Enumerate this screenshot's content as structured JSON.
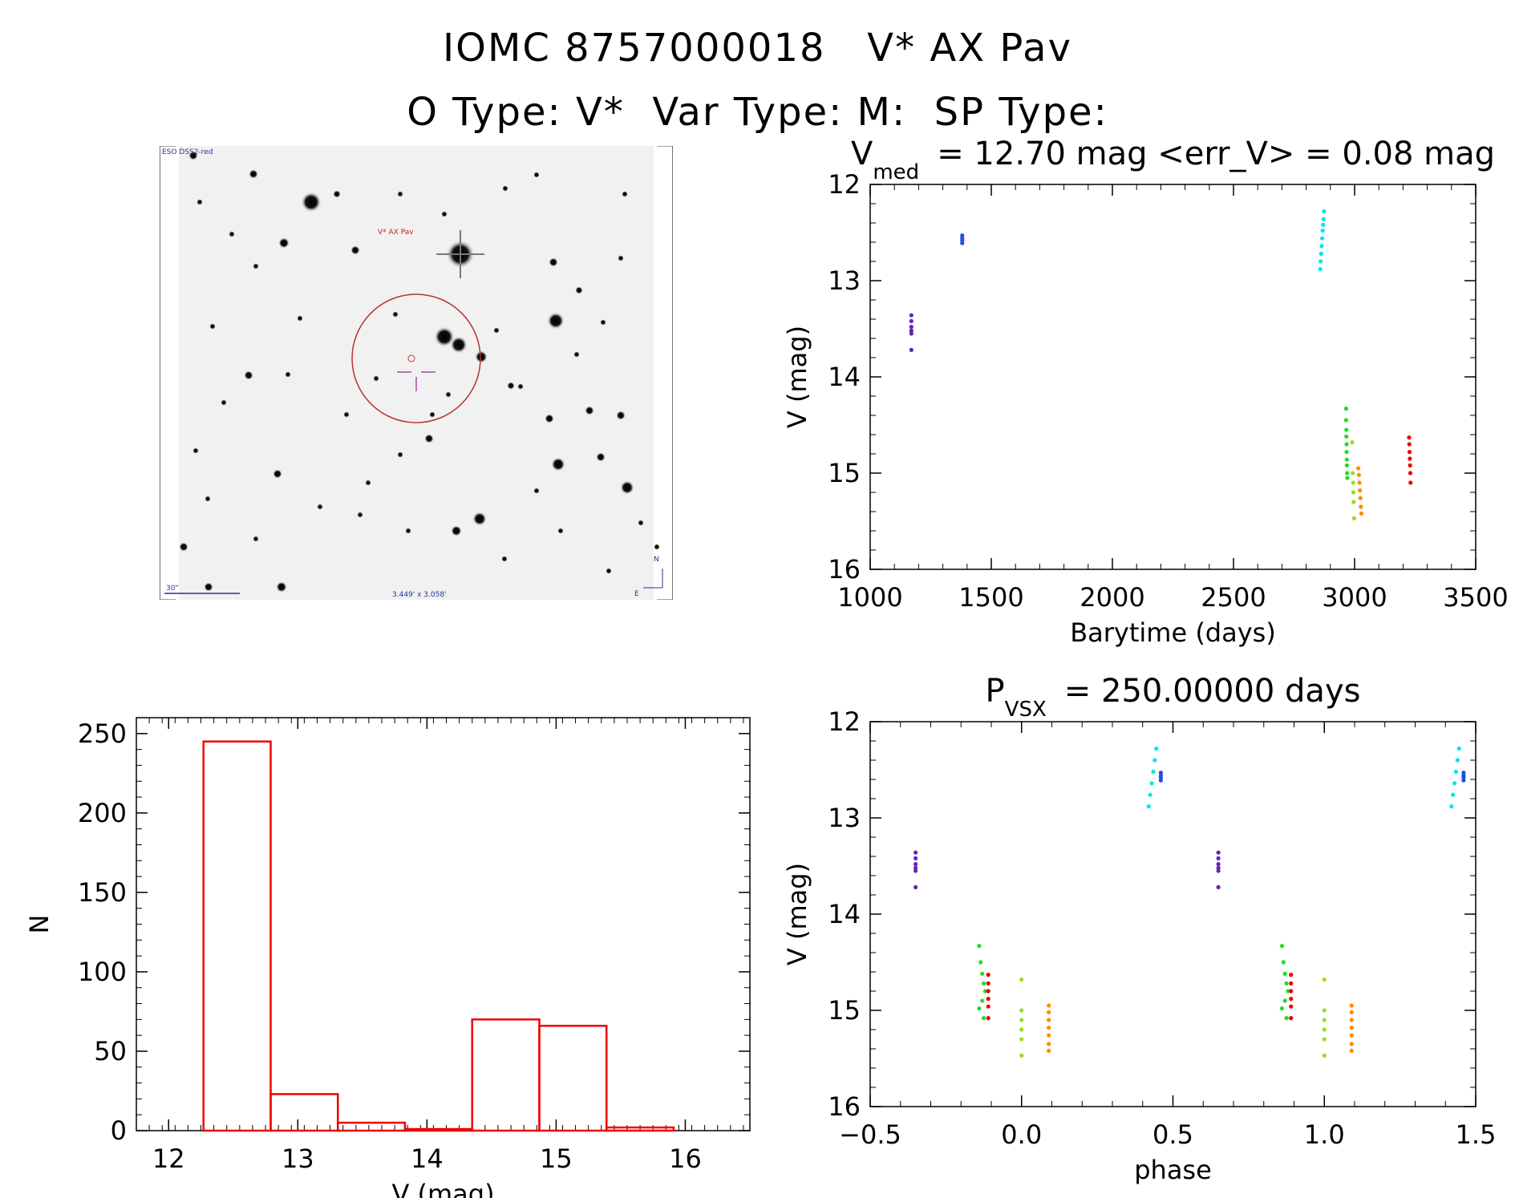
{
  "header": {
    "name_a": "IOMC 8757000018",
    "name_b": "V* AX Pav",
    "otype_label": "O Type: V*",
    "vartype_label": "Var Type: M:",
    "sptype_label": "SP Type:"
  },
  "finder": {
    "survey": "ESO DSS2-red",
    "target": "V* AX Pav",
    "scale_bar": "30\"",
    "fov": "3.449' x 3.058'",
    "north": "N",
    "east": "E"
  },
  "colors": {
    "cyan": "#00E5EE",
    "blue": "#1F4FE0",
    "purple": "#6A22B5",
    "green": "#22DD22",
    "yellowgreen": "#99DD22",
    "orange": "#FF8C00",
    "red": "#EE0000",
    "hist": "#EE0000"
  },
  "chart_data": [
    {
      "id": "lightcurve",
      "type": "scatter",
      "title_prefix": "V",
      "title_sub": "med",
      "title_rest": "= 12.70 mag <err_V> = 0.08 mag",
      "xlabel": "Barytime (days)",
      "ylabel": "V (mag)",
      "xlim": [
        1000,
        3500
      ],
      "ylim": [
        16,
        12
      ],
      "xticks": [
        1000,
        1500,
        2000,
        2500,
        3000,
        3500
      ],
      "yticks": [
        12,
        13,
        14,
        15,
        16
      ],
      "series": [
        {
          "name": "purple",
          "color": "purple",
          "x": [
            1170,
            1170,
            1170,
            1170,
            1170,
            1170
          ],
          "y": [
            13.36,
            13.42,
            13.48,
            13.52,
            13.55,
            13.72
          ]
        },
        {
          "name": "blue",
          "color": "blue",
          "x": [
            1380,
            1380,
            1380,
            1380
          ],
          "y": [
            12.53,
            12.56,
            12.58,
            12.61
          ]
        },
        {
          "name": "cyan",
          "color": "cyan",
          "x": [
            2858,
            2860,
            2862,
            2864,
            2866,
            2868,
            2870,
            2872,
            2874
          ],
          "y": [
            12.88,
            12.8,
            12.72,
            12.64,
            12.56,
            12.48,
            12.42,
            12.36,
            12.28
          ]
        },
        {
          "name": "green",
          "color": "green",
          "x": [
            2965,
            2965,
            2966,
            2966,
            2967,
            2967,
            2968,
            2968,
            2969,
            2970
          ],
          "y": [
            14.33,
            14.45,
            14.55,
            14.62,
            14.7,
            14.78,
            14.86,
            14.92,
            15.0,
            15.05
          ]
        },
        {
          "name": "yellowgreen",
          "color": "yellowgreen",
          "x": [
            2990,
            2992,
            2994,
            2995,
            2996,
            2998
          ],
          "y": [
            14.68,
            15.0,
            15.1,
            15.2,
            15.3,
            15.47
          ]
        },
        {
          "name": "orange",
          "color": "orange",
          "x": [
            3015,
            3018,
            3020,
            3022,
            3024,
            3026,
            3028
          ],
          "y": [
            14.95,
            15.02,
            15.1,
            15.18,
            15.26,
            15.35,
            15.42
          ]
        },
        {
          "name": "red",
          "color": "red",
          "x": [
            3225,
            3226,
            3227,
            3228,
            3229,
            3230,
            3231
          ],
          "y": [
            14.63,
            14.7,
            14.78,
            14.85,
            14.92,
            15.0,
            15.1
          ]
        }
      ]
    },
    {
      "id": "phased",
      "type": "scatter",
      "title_prefix": "P",
      "title_sub": "VSX",
      "title_rest": "= 250.00000 days",
      "xlabel": "phase",
      "ylabel": "V (mag)",
      "xlim": [
        -0.5,
        1.5
      ],
      "ylim": [
        16,
        12
      ],
      "xticks": [
        -0.5,
        0.0,
        0.5,
        1.0,
        1.5
      ],
      "xtick_labels": [
        "−0.5",
        "0.0",
        "0.5",
        "1.0",
        "1.5"
      ],
      "yticks": [
        12,
        13,
        14,
        15,
        16
      ],
      "series": [
        {
          "name": "purple",
          "color": "purple",
          "x": [
            -0.35,
            -0.35,
            -0.35,
            -0.35,
            -0.35,
            -0.35,
            0.65,
            0.65,
            0.65,
            0.65,
            0.65,
            0.65
          ],
          "y": [
            13.36,
            13.42,
            13.48,
            13.52,
            13.55,
            13.72,
            13.36,
            13.42,
            13.48,
            13.52,
            13.55,
            13.72
          ]
        },
        {
          "name": "blue",
          "color": "blue",
          "x": [
            0.46,
            0.46,
            0.46,
            0.46,
            1.46,
            1.46,
            1.46,
            1.46
          ],
          "y": [
            12.53,
            12.56,
            12.58,
            12.61,
            12.53,
            12.56,
            12.58,
            12.61
          ]
        },
        {
          "name": "cyan",
          "color": "cyan",
          "x": [
            0.42,
            0.425,
            0.43,
            0.435,
            0.44,
            0.445,
            1.42,
            1.425,
            1.43,
            1.435,
            1.44,
            1.445
          ],
          "y": [
            12.88,
            12.76,
            12.64,
            12.52,
            12.4,
            12.28,
            12.88,
            12.76,
            12.64,
            12.52,
            12.4,
            12.28
          ]
        },
        {
          "name": "green",
          "color": "green",
          "x": [
            -0.14,
            -0.135,
            -0.13,
            -0.125,
            -0.12,
            -0.13,
            -0.14,
            -0.125,
            0.86,
            0.865,
            0.87,
            0.875,
            0.88,
            0.87,
            0.86,
            0.875
          ],
          "y": [
            14.33,
            14.5,
            14.62,
            14.72,
            14.8,
            14.9,
            14.98,
            15.08,
            14.33,
            14.5,
            14.62,
            14.72,
            14.8,
            14.9,
            14.98,
            15.08
          ]
        },
        {
          "name": "red",
          "color": "red",
          "x": [
            -0.11,
            -0.11,
            -0.11,
            -0.11,
            -0.11,
            -0.11,
            0.89,
            0.89,
            0.89,
            0.89,
            0.89,
            0.89
          ],
          "y": [
            14.63,
            14.72,
            14.8,
            14.88,
            14.96,
            15.08,
            14.63,
            14.72,
            14.8,
            14.88,
            14.96,
            15.08
          ]
        },
        {
          "name": "yellowgreen",
          "color": "yellowgreen",
          "x": [
            0.0,
            0.0,
            0.0,
            0.0,
            0.0,
            0.0,
            1.0,
            1.0,
            1.0,
            1.0,
            1.0,
            1.0
          ],
          "y": [
            14.68,
            15.0,
            15.1,
            15.2,
            15.3,
            15.47,
            14.68,
            15.0,
            15.1,
            15.2,
            15.3,
            15.47
          ]
        },
        {
          "name": "orange",
          "color": "orange",
          "x": [
            0.09,
            0.09,
            0.09,
            0.09,
            0.09,
            0.09,
            0.09,
            1.09,
            1.09,
            1.09,
            1.09,
            1.09,
            1.09,
            1.09
          ],
          "y": [
            14.95,
            15.02,
            15.1,
            15.18,
            15.26,
            15.35,
            15.42,
            14.95,
            15.02,
            15.1,
            15.18,
            15.26,
            15.35,
            15.42
          ]
        }
      ]
    },
    {
      "id": "histogram",
      "type": "bar",
      "title": "",
      "xlabel": "V (mag)",
      "ylabel": "N",
      "xlim": [
        11.75,
        16.5
      ],
      "ylim": [
        0,
        260
      ],
      "xticks": [
        12,
        13,
        14,
        15,
        16
      ],
      "yticks": [
        0,
        50,
        100,
        150,
        200,
        250
      ],
      "bins": [
        {
          "x0": 12.27,
          "x1": 12.79,
          "value": 245
        },
        {
          "x0": 12.79,
          "x1": 13.31,
          "value": 23
        },
        {
          "x0": 13.31,
          "x1": 13.83,
          "value": 5
        },
        {
          "x0": 13.83,
          "x1": 14.35,
          "value": 1
        },
        {
          "x0": 14.35,
          "x1": 14.87,
          "value": 70
        },
        {
          "x0": 14.87,
          "x1": 15.39,
          "value": 66
        },
        {
          "x0": 15.39,
          "x1": 15.91,
          "value": 2
        }
      ]
    }
  ]
}
